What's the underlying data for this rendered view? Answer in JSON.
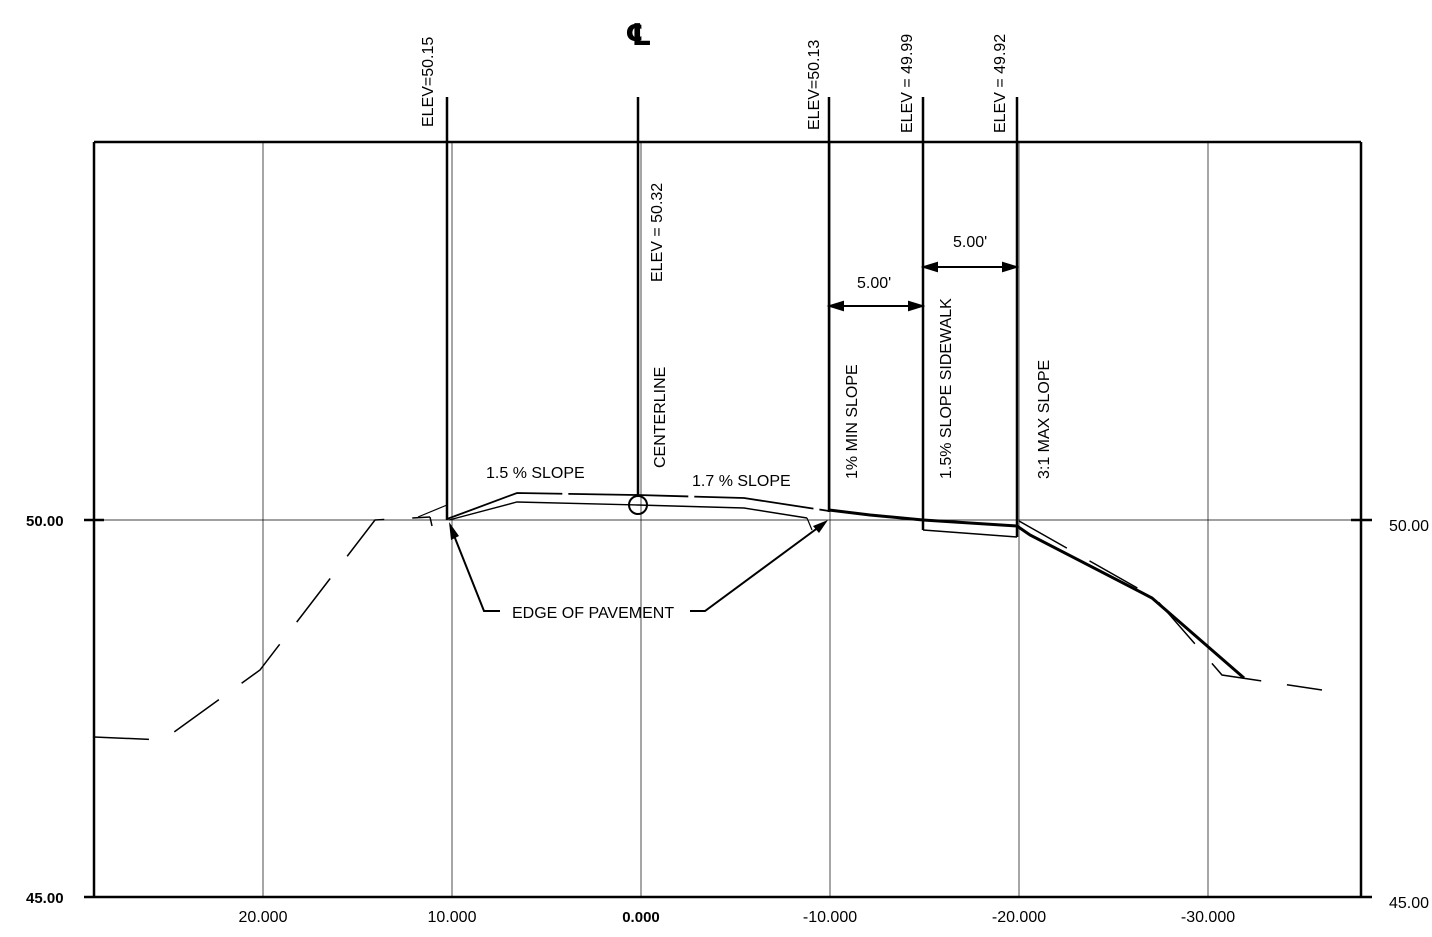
{
  "diagram": {
    "centerline_symbol": "℄",
    "y_axis": {
      "left_labels": [
        "50.00",
        "45.00"
      ],
      "right_labels": [
        "50.00",
        "45.00"
      ]
    },
    "x_axis": {
      "tick_labels": [
        "20.000",
        "10.000",
        "0.000",
        "-10.000",
        "-20.000",
        "-30.000"
      ]
    },
    "elevation_labels": {
      "left_edge": "ELEV=50.15",
      "centerline": "ELEV = 50.32",
      "right_edge": "ELEV=50.13",
      "sidewalk_start": "ELEV = 49.99",
      "sidewalk_end": "ELEV = 49.92"
    },
    "annotations": {
      "centerline": "CENTERLINE",
      "min_slope": "1% MIN SLOPE",
      "sidewalk_slope": "1.5% SLOPE SIDEWALK",
      "max_slope": "3:1 MAX SLOPE",
      "left_pavement_slope": "1.5 % SLOPE",
      "right_pavement_slope": "1.7 % SLOPE",
      "edge_of_pavement": "EDGE OF PAVEMENT"
    },
    "dimensions": {
      "dim_1": "5.00'",
      "dim_2": "5.00'"
    }
  }
}
